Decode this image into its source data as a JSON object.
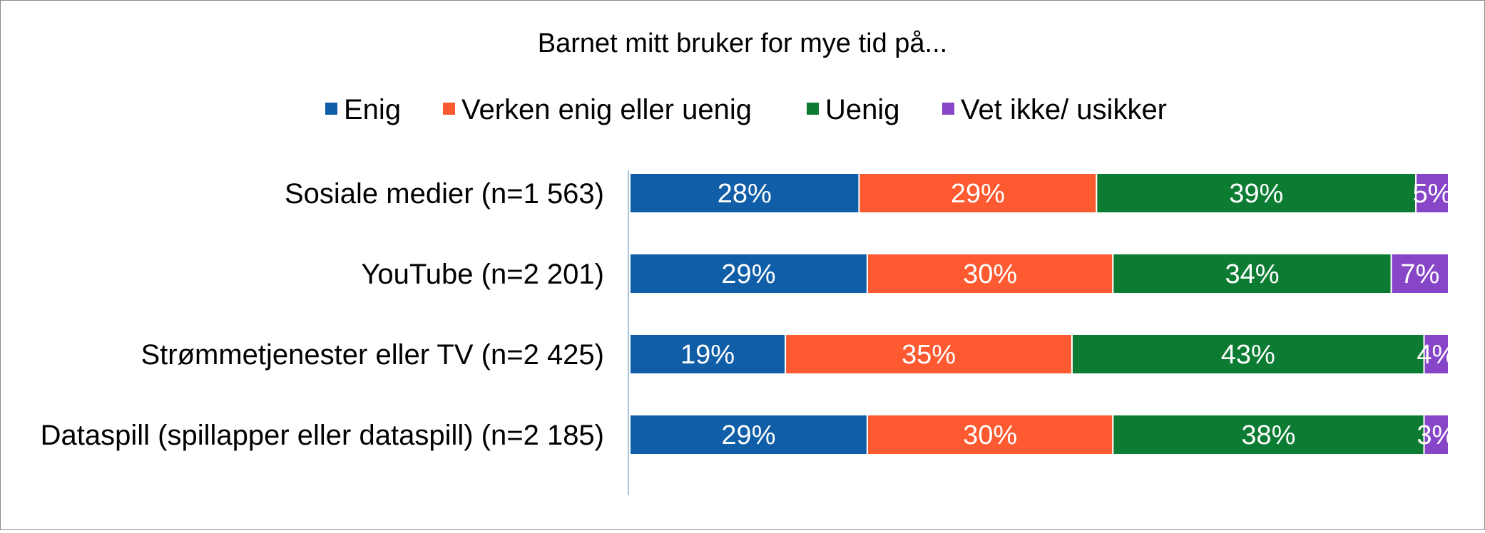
{
  "chart_data": {
    "type": "bar",
    "orientation": "horizontal",
    "stacked": true,
    "title": "Barnet mitt bruker for mye tid på...",
    "legend_position": "top",
    "grid": false,
    "xlim": [
      0,
      100
    ],
    "unit": "%",
    "categories": [
      "Sosiale medier (n=1 563)",
      "YouTube (n=2 201)",
      "Strømmetjenester eller TV (n=2 425)",
      "Dataspill (spillapper eller dataspill) (n=2 185)"
    ],
    "series": [
      {
        "name": "Enig",
        "color": "#105ea7",
        "values": [
          28,
          29,
          19,
          29
        ]
      },
      {
        "name": "Verken enig eller uenig",
        "color": "#fe5a32",
        "values": [
          29,
          30,
          35,
          30
        ]
      },
      {
        "name": "Uenig",
        "color": "#0b7c32",
        "values": [
          39,
          34,
          43,
          38
        ]
      },
      {
        "name": "Vet ikke/ usikker",
        "color": "#8745c8",
        "values": [
          5,
          7,
          4,
          3
        ]
      }
    ]
  }
}
